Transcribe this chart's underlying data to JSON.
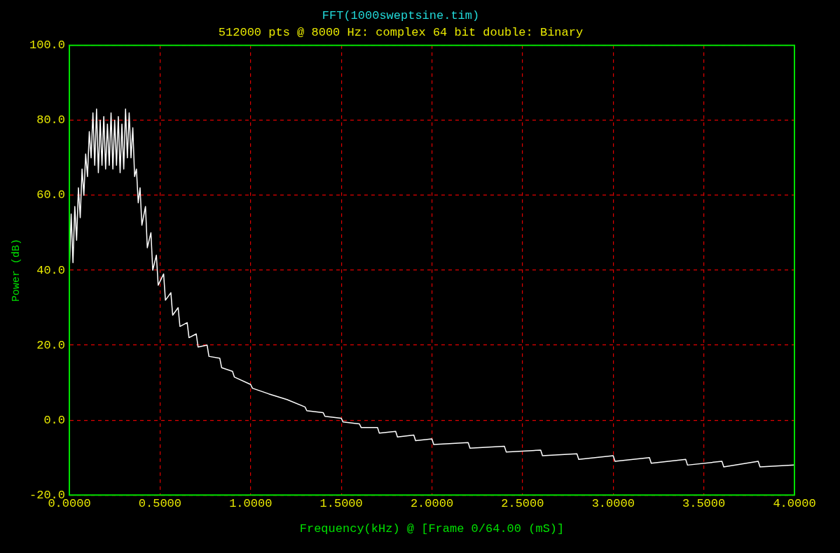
{
  "chart_data": {
    "type": "line",
    "title": "FFT(1000sweptsine.tim)",
    "subtitle": "512000 pts @ 8000 Hz: complex 64 bit double: Binary",
    "xlabel": "Frequency(kHz) @ [Frame 0/64.00 (mS)]",
    "ylabel": "Power (dB)",
    "x": [
      0.0,
      0.01,
      0.02,
      0.03,
      0.04,
      0.05,
      0.06,
      0.07,
      0.08,
      0.09,
      0.1,
      0.11,
      0.12,
      0.13,
      0.14,
      0.15,
      0.16,
      0.17,
      0.18,
      0.19,
      0.2,
      0.21,
      0.22,
      0.23,
      0.24,
      0.25,
      0.26,
      0.27,
      0.28,
      0.29,
      0.3,
      0.31,
      0.32,
      0.33,
      0.34,
      0.35,
      0.36,
      0.37,
      0.38,
      0.39,
      0.4,
      0.42,
      0.43,
      0.45,
      0.46,
      0.48,
      0.49,
      0.52,
      0.53,
      0.56,
      0.57,
      0.6,
      0.61,
      0.65,
      0.66,
      0.7,
      0.71,
      0.76,
      0.77,
      0.83,
      0.84,
      0.9,
      0.91,
      1.0,
      1.01,
      1.1,
      1.2,
      1.3,
      1.31,
      1.4,
      1.41,
      1.5,
      1.51,
      1.6,
      1.61,
      1.7,
      1.71,
      1.8,
      1.81,
      1.9,
      1.91,
      2.0,
      2.01,
      2.2,
      2.21,
      2.4,
      2.41,
      2.6,
      2.61,
      2.8,
      2.81,
      3.0,
      3.01,
      3.2,
      3.21,
      3.4,
      3.41,
      3.6,
      3.61,
      3.8,
      3.81,
      4.0
    ],
    "series": [
      {
        "color": "#ffffff",
        "values": [
          40,
          55,
          42,
          57,
          48,
          62,
          54,
          67,
          60,
          71,
          65,
          77,
          70,
          82,
          68,
          83,
          66,
          80,
          68,
          81,
          67,
          79,
          68,
          82,
          67,
          80,
          68,
          81,
          66,
          79,
          67,
          83,
          70,
          82,
          70,
          78,
          65,
          67,
          58,
          62,
          52,
          57,
          46,
          50,
          40,
          44,
          36,
          39,
          32,
          34,
          28,
          30,
          25,
          26,
          22,
          23,
          19.5,
          20,
          17,
          16.5,
          14,
          13,
          11.5,
          9.5,
          8.5,
          7,
          5.5,
          3.5,
          2.5,
          2,
          1,
          0.5,
          -0.5,
          -1,
          -2,
          -2,
          -3.5,
          -3,
          -4.5,
          -4,
          -5.5,
          -5,
          -6.5,
          -6,
          -7.5,
          -7,
          -8.5,
          -8,
          -9.5,
          -9,
          -10.5,
          -9.5,
          -11,
          -10,
          -11.5,
          -10.5,
          -12,
          -11,
          -12.5,
          -11,
          -12.5,
          -12
        ]
      }
    ],
    "xlim": [
      0,
      4
    ],
    "xticks": [
      {
        "value": 0,
        "label": "0.0000"
      },
      {
        "value": 0.5,
        "label": "0.5000"
      },
      {
        "value": 1,
        "label": "1.0000"
      },
      {
        "value": 1.5,
        "label": "1.5000"
      },
      {
        "value": 2,
        "label": "2.0000"
      },
      {
        "value": 2.5,
        "label": "2.5000"
      },
      {
        "value": 3,
        "label": "3.0000"
      },
      {
        "value": 3.5,
        "label": "3.5000"
      },
      {
        "value": 4,
        "label": "4.0000"
      }
    ],
    "ylim": [
      -20,
      100
    ],
    "yticks": [
      {
        "value": -20,
        "label": "-20.0"
      },
      {
        "value": 0,
        "label": "0.0"
      },
      {
        "value": 20,
        "label": "20.0"
      },
      {
        "value": 40,
        "label": "40.0"
      },
      {
        "value": 60,
        "label": "60.0"
      },
      {
        "value": 80,
        "label": "80.0"
      },
      {
        "value": 100,
        "label": "100.0"
      }
    ],
    "grid": true,
    "legend": false,
    "marker": "none",
    "line_style": "solid"
  }
}
